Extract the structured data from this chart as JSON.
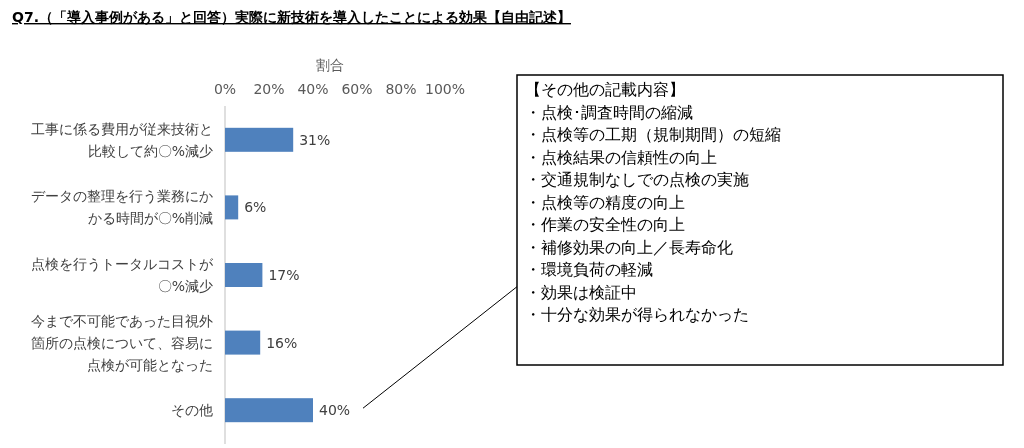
{
  "chart_data": {
    "type": "bar",
    "orientation": "horizontal",
    "title": "Q7.（「導入事例がある」と回答）実際に新技術を導入したことによる効果【自由記述】",
    "xlabel": "割合",
    "categories": [
      "工事に係る費用が従来技術と比較して約〇%減少",
      "データの整理を行う業務にかかる時間が〇%削減",
      "点検を行うトータルコストが〇%減少",
      "今まで不可能であった目視外箇所の点検について、容易に点検が可能となった",
      "その他"
    ],
    "values": [
      31,
      6,
      17,
      16,
      40
    ],
    "value_labels": [
      "31%",
      "6%",
      "17%",
      "16%",
      "40%"
    ],
    "color": "#4f81bd",
    "xlim": [
      0,
      100
    ],
    "xticks": [
      {
        "value": 0,
        "label": "0%"
      },
      {
        "value": 20,
        "label": "20%"
      },
      {
        "value": 40,
        "label": "40%"
      },
      {
        "value": 60,
        "label": "60%"
      },
      {
        "value": 80,
        "label": "80%"
      },
      {
        "value": 100,
        "label": "100%"
      }
    ],
    "annotations": [
      "【その他の記載内容】",
      "・点検･調査時間の縮減",
      "・点検等の工期（規制期間）の短縮",
      "・点検結果の信頼性の向上",
      "・交通規制なしでの点検の実施",
      "・点検等の精度の向上",
      "・作業の安全性の向上",
      "・補修効果の向上／長寿命化",
      "・環境負荷の軽減",
      "・効果は検証中",
      "・十分な効果が得られなかった"
    ]
  }
}
